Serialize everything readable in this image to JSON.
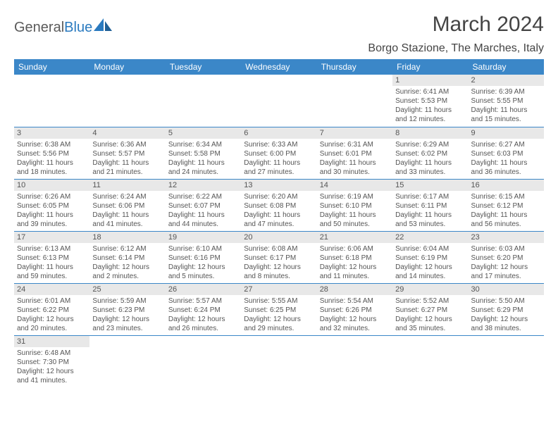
{
  "brand": {
    "part1": "General",
    "part2": "Blue"
  },
  "title": "March 2024",
  "location": "Borgo Stazione, The Marches, Italy",
  "colors": {
    "header_bg": "#3b87c8",
    "header_text": "#ffffff",
    "row_border": "#3b87c8",
    "daynum_bg": "#e8e8e8",
    "body_text": "#555555",
    "brand_gray": "#5a5a5a",
    "brand_blue": "#2a7abf"
  },
  "weekdays": [
    "Sunday",
    "Monday",
    "Tuesday",
    "Wednesday",
    "Thursday",
    "Friday",
    "Saturday"
  ],
  "weeks": [
    [
      null,
      null,
      null,
      null,
      null,
      {
        "n": "1",
        "sr": "Sunrise: 6:41 AM",
        "ss": "Sunset: 5:53 PM",
        "dl1": "Daylight: 11 hours",
        "dl2": "and 12 minutes."
      },
      {
        "n": "2",
        "sr": "Sunrise: 6:39 AM",
        "ss": "Sunset: 5:55 PM",
        "dl1": "Daylight: 11 hours",
        "dl2": "and 15 minutes."
      }
    ],
    [
      {
        "n": "3",
        "sr": "Sunrise: 6:38 AM",
        "ss": "Sunset: 5:56 PM",
        "dl1": "Daylight: 11 hours",
        "dl2": "and 18 minutes."
      },
      {
        "n": "4",
        "sr": "Sunrise: 6:36 AM",
        "ss": "Sunset: 5:57 PM",
        "dl1": "Daylight: 11 hours",
        "dl2": "and 21 minutes."
      },
      {
        "n": "5",
        "sr": "Sunrise: 6:34 AM",
        "ss": "Sunset: 5:58 PM",
        "dl1": "Daylight: 11 hours",
        "dl2": "and 24 minutes."
      },
      {
        "n": "6",
        "sr": "Sunrise: 6:33 AM",
        "ss": "Sunset: 6:00 PM",
        "dl1": "Daylight: 11 hours",
        "dl2": "and 27 minutes."
      },
      {
        "n": "7",
        "sr": "Sunrise: 6:31 AM",
        "ss": "Sunset: 6:01 PM",
        "dl1": "Daylight: 11 hours",
        "dl2": "and 30 minutes."
      },
      {
        "n": "8",
        "sr": "Sunrise: 6:29 AM",
        "ss": "Sunset: 6:02 PM",
        "dl1": "Daylight: 11 hours",
        "dl2": "and 33 minutes."
      },
      {
        "n": "9",
        "sr": "Sunrise: 6:27 AM",
        "ss": "Sunset: 6:03 PM",
        "dl1": "Daylight: 11 hours",
        "dl2": "and 36 minutes."
      }
    ],
    [
      {
        "n": "10",
        "sr": "Sunrise: 6:26 AM",
        "ss": "Sunset: 6:05 PM",
        "dl1": "Daylight: 11 hours",
        "dl2": "and 39 minutes."
      },
      {
        "n": "11",
        "sr": "Sunrise: 6:24 AM",
        "ss": "Sunset: 6:06 PM",
        "dl1": "Daylight: 11 hours",
        "dl2": "and 41 minutes."
      },
      {
        "n": "12",
        "sr": "Sunrise: 6:22 AM",
        "ss": "Sunset: 6:07 PM",
        "dl1": "Daylight: 11 hours",
        "dl2": "and 44 minutes."
      },
      {
        "n": "13",
        "sr": "Sunrise: 6:20 AM",
        "ss": "Sunset: 6:08 PM",
        "dl1": "Daylight: 11 hours",
        "dl2": "and 47 minutes."
      },
      {
        "n": "14",
        "sr": "Sunrise: 6:19 AM",
        "ss": "Sunset: 6:10 PM",
        "dl1": "Daylight: 11 hours",
        "dl2": "and 50 minutes."
      },
      {
        "n": "15",
        "sr": "Sunrise: 6:17 AM",
        "ss": "Sunset: 6:11 PM",
        "dl1": "Daylight: 11 hours",
        "dl2": "and 53 minutes."
      },
      {
        "n": "16",
        "sr": "Sunrise: 6:15 AM",
        "ss": "Sunset: 6:12 PM",
        "dl1": "Daylight: 11 hours",
        "dl2": "and 56 minutes."
      }
    ],
    [
      {
        "n": "17",
        "sr": "Sunrise: 6:13 AM",
        "ss": "Sunset: 6:13 PM",
        "dl1": "Daylight: 11 hours",
        "dl2": "and 59 minutes."
      },
      {
        "n": "18",
        "sr": "Sunrise: 6:12 AM",
        "ss": "Sunset: 6:14 PM",
        "dl1": "Daylight: 12 hours",
        "dl2": "and 2 minutes."
      },
      {
        "n": "19",
        "sr": "Sunrise: 6:10 AM",
        "ss": "Sunset: 6:16 PM",
        "dl1": "Daylight: 12 hours",
        "dl2": "and 5 minutes."
      },
      {
        "n": "20",
        "sr": "Sunrise: 6:08 AM",
        "ss": "Sunset: 6:17 PM",
        "dl1": "Daylight: 12 hours",
        "dl2": "and 8 minutes."
      },
      {
        "n": "21",
        "sr": "Sunrise: 6:06 AM",
        "ss": "Sunset: 6:18 PM",
        "dl1": "Daylight: 12 hours",
        "dl2": "and 11 minutes."
      },
      {
        "n": "22",
        "sr": "Sunrise: 6:04 AM",
        "ss": "Sunset: 6:19 PM",
        "dl1": "Daylight: 12 hours",
        "dl2": "and 14 minutes."
      },
      {
        "n": "23",
        "sr": "Sunrise: 6:03 AM",
        "ss": "Sunset: 6:20 PM",
        "dl1": "Daylight: 12 hours",
        "dl2": "and 17 minutes."
      }
    ],
    [
      {
        "n": "24",
        "sr": "Sunrise: 6:01 AM",
        "ss": "Sunset: 6:22 PM",
        "dl1": "Daylight: 12 hours",
        "dl2": "and 20 minutes."
      },
      {
        "n": "25",
        "sr": "Sunrise: 5:59 AM",
        "ss": "Sunset: 6:23 PM",
        "dl1": "Daylight: 12 hours",
        "dl2": "and 23 minutes."
      },
      {
        "n": "26",
        "sr": "Sunrise: 5:57 AM",
        "ss": "Sunset: 6:24 PM",
        "dl1": "Daylight: 12 hours",
        "dl2": "and 26 minutes."
      },
      {
        "n": "27",
        "sr": "Sunrise: 5:55 AM",
        "ss": "Sunset: 6:25 PM",
        "dl1": "Daylight: 12 hours",
        "dl2": "and 29 minutes."
      },
      {
        "n": "28",
        "sr": "Sunrise: 5:54 AM",
        "ss": "Sunset: 6:26 PM",
        "dl1": "Daylight: 12 hours",
        "dl2": "and 32 minutes."
      },
      {
        "n": "29",
        "sr": "Sunrise: 5:52 AM",
        "ss": "Sunset: 6:27 PM",
        "dl1": "Daylight: 12 hours",
        "dl2": "and 35 minutes."
      },
      {
        "n": "30",
        "sr": "Sunrise: 5:50 AM",
        "ss": "Sunset: 6:29 PM",
        "dl1": "Daylight: 12 hours",
        "dl2": "and 38 minutes."
      }
    ],
    [
      {
        "n": "31",
        "sr": "Sunrise: 6:48 AM",
        "ss": "Sunset: 7:30 PM",
        "dl1": "Daylight: 12 hours",
        "dl2": "and 41 minutes."
      },
      null,
      null,
      null,
      null,
      null,
      null
    ]
  ]
}
